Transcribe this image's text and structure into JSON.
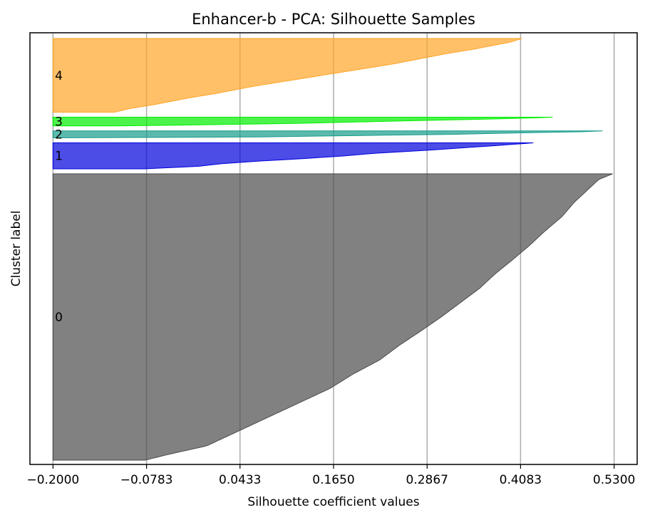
{
  "chart_data": {
    "type": "area",
    "title": "Enhancer-b - PCA: Silhouette Samples",
    "xlabel": "Silhouette coefficient values",
    "ylabel": "Cluster label",
    "xlim": [
      -0.23,
      0.56
    ],
    "x_ticks": [
      -0.2,
      -0.0783,
      0.0433,
      0.165,
      0.2867,
      0.4083,
      0.53
    ],
    "x_tick_labels": [
      "−0.2000",
      "−0.0783",
      "0.0433",
      "0.1650",
      "0.2867",
      "0.4083",
      "0.5300"
    ],
    "grid": "vertical",
    "baseline": -0.2,
    "clusters": [
      {
        "label": "0",
        "color": "#4b4b4b",
        "size": 330,
        "sorted_values_desc_profile": [
          [
            0.0,
            0.528
          ],
          [
            0.02,
            0.51
          ],
          [
            0.05,
            0.498
          ],
          [
            0.1,
            0.478
          ],
          [
            0.15,
            0.462
          ],
          [
            0.2,
            0.44
          ],
          [
            0.25,
            0.42
          ],
          [
            0.3,
            0.398
          ],
          [
            0.35,
            0.375
          ],
          [
            0.4,
            0.355
          ],
          [
            0.45,
            0.33
          ],
          [
            0.5,
            0.305
          ],
          [
            0.55,
            0.278
          ],
          [
            0.6,
            0.25
          ],
          [
            0.65,
            0.225
          ],
          [
            0.7,
            0.19
          ],
          [
            0.75,
            0.16
          ],
          [
            0.8,
            0.12
          ],
          [
            0.85,
            0.08
          ],
          [
            0.9,
            0.04
          ],
          [
            0.95,
            0.0
          ],
          [
            0.98,
            -0.05
          ],
          [
            1.0,
            -0.08
          ]
        ]
      },
      {
        "label": "1",
        "color": "#0000dd",
        "size": 30,
        "sorted_values_desc_profile": [
          [
            0.0,
            0.425
          ],
          [
            0.1,
            0.38
          ],
          [
            0.2,
            0.33
          ],
          [
            0.3,
            0.28
          ],
          [
            0.4,
            0.22
          ],
          [
            0.5,
            0.18
          ],
          [
            0.6,
            0.13
          ],
          [
            0.7,
            0.07
          ],
          [
            0.8,
            0.02
          ],
          [
            0.9,
            -0.01
          ],
          [
            1.0,
            -0.08
          ]
        ]
      },
      {
        "label": "2",
        "color": "#159c8a",
        "size": 8,
        "sorted_values_desc_profile": [
          [
            0.0,
            0.515
          ],
          [
            0.15,
            0.48
          ],
          [
            0.3,
            0.4
          ],
          [
            0.5,
            0.32
          ],
          [
            0.7,
            0.18
          ],
          [
            0.9,
            0.05
          ],
          [
            1.0,
            -0.2
          ]
        ]
      },
      {
        "label": "3",
        "color": "#00ee00",
        "size": 10,
        "sorted_values_desc_profile": [
          [
            0.0,
            0.45
          ],
          [
            0.15,
            0.4
          ],
          [
            0.3,
            0.32
          ],
          [
            0.5,
            0.22
          ],
          [
            0.7,
            0.12
          ],
          [
            0.85,
            0.02
          ],
          [
            1.0,
            -0.12
          ]
        ]
      },
      {
        "label": "4",
        "color": "#ffa528",
        "size": 85,
        "sorted_values_desc_profile": [
          [
            0.0,
            0.41
          ],
          [
            0.05,
            0.395
          ],
          [
            0.1,
            0.37
          ],
          [
            0.15,
            0.345
          ],
          [
            0.2,
            0.315
          ],
          [
            0.25,
            0.29
          ],
          [
            0.3,
            0.265
          ],
          [
            0.35,
            0.24
          ],
          [
            0.4,
            0.21
          ],
          [
            0.45,
            0.18
          ],
          [
            0.5,
            0.15
          ],
          [
            0.55,
            0.12
          ],
          [
            0.6,
            0.09
          ],
          [
            0.65,
            0.06
          ],
          [
            0.7,
            0.035
          ],
          [
            0.75,
            0.01
          ],
          [
            0.8,
            -0.02
          ],
          [
            0.85,
            -0.045
          ],
          [
            0.9,
            -0.07
          ],
          [
            0.95,
            -0.1
          ],
          [
            1.0,
            -0.12
          ]
        ]
      }
    ]
  }
}
